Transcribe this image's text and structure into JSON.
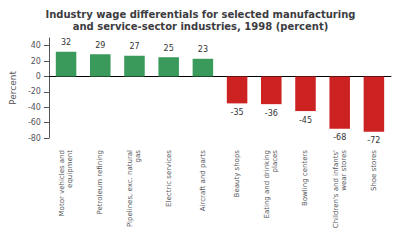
{
  "chart_data": {
    "type": "bar",
    "title": "Industry wage differentials for selected manufacturing\nand service-sector industries, 1998 (percent)",
    "categories": [
      "Motor vehicles and\nequipment",
      "Petroleum refining",
      "Pipelines, exc. natural\ngas",
      "Electric services",
      "Aircraft and parts",
      "Beauty shops",
      "Eating and drinking\nplaces",
      "Bowling centers",
      "Children's and infants'\nwear stores",
      "Shoe stores"
    ],
    "values": [
      32,
      29,
      27,
      25,
      23,
      -35,
      -36,
      -45,
      -68,
      -72
    ],
    "colors": [
      "#3a9a5c",
      "#3a9a5c",
      "#3a9a5c",
      "#3a9a5c",
      "#3a9a5c",
      "#cc2222",
      "#cc2222",
      "#cc2222",
      "#cc2222",
      "#cc2222"
    ],
    "ylabel": "Percent",
    "ylim": [
      -80,
      50
    ],
    "yticks": [
      -80,
      -60,
      -40,
      -20,
      0,
      20,
      40
    ],
    "data_labels": true,
    "grid": false
  }
}
